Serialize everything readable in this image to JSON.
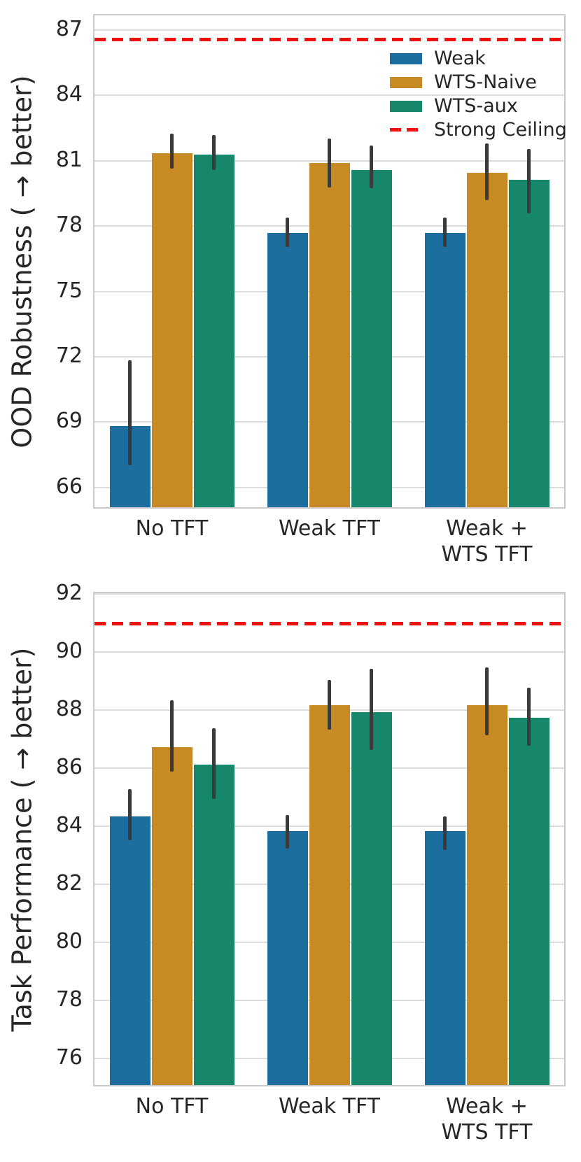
{
  "figure": {
    "background": "#ffffff",
    "text_color": "#262626",
    "grid_color": "#dcdcdc",
    "spine_color": "#c9c9c9",
    "errorbar_color": "#3a3a3a"
  },
  "legend": {
    "entries": [
      {
        "label": "Weak",
        "swatch": "patch",
        "color": "#1b6e9e"
      },
      {
        "label": "WTS-Naive",
        "swatch": "patch",
        "color": "#c88a24"
      },
      {
        "label": "WTS-aux",
        "swatch": "patch",
        "color": "#17876b"
      },
      {
        "label": "Strong Ceiling",
        "swatch": "dashed-line",
        "color": "#ee1111"
      }
    ]
  },
  "chart_data": [
    {
      "type": "bar",
      "title": "",
      "xlabel": "",
      "ylabel": "OOD Robustness ( → better)",
      "categories": [
        "No TFT",
        "Weak TFT",
        "Weak +\nWTS TFT"
      ],
      "series": [
        {
          "name": "Weak",
          "color": "#1b6e9e",
          "values": [
            68.8,
            77.65,
            77.65
          ],
          "err_low": [
            67.0,
            77.0,
            77.0
          ],
          "err_high": [
            71.8,
            78.35,
            78.35
          ]
        },
        {
          "name": "WTS-Naive",
          "color": "#c88a24",
          "values": [
            81.3,
            80.85,
            80.4
          ],
          "err_low": [
            80.6,
            79.75,
            79.15
          ],
          "err_high": [
            82.2,
            82.0,
            81.75
          ]
        },
        {
          "name": "WTS-aux",
          "color": "#17876b",
          "values": [
            81.25,
            80.55,
            80.1
          ],
          "err_low": [
            80.55,
            79.7,
            78.55
          ],
          "err_high": [
            82.15,
            81.65,
            81.5
          ]
        }
      ],
      "ceiling": {
        "label": "Strong Ceiling",
        "value": 86.6,
        "color": "#ee1111"
      },
      "ylim": [
        65,
        87.7
      ],
      "yticks": [
        66,
        69,
        72,
        75,
        78,
        81,
        84,
        87
      ],
      "grid": true,
      "legend_position": "upper-right-inside",
      "show_legend": true
    },
    {
      "type": "bar",
      "title": "",
      "xlabel": "",
      "ylabel": "Task Performance ( → better)",
      "categories": [
        "No TFT",
        "Weak TFT",
        "Weak +\nWTS TFT"
      ],
      "series": [
        {
          "name": "Weak",
          "color": "#1b6e9e",
          "values": [
            84.3,
            83.8,
            83.8
          ],
          "err_low": [
            83.5,
            83.2,
            83.15
          ],
          "err_high": [
            85.25,
            84.35,
            84.3
          ]
        },
        {
          "name": "WTS-Naive",
          "color": "#c88a24",
          "values": [
            86.7,
            88.15,
            88.15
          ],
          "err_low": [
            85.85,
            87.3,
            87.1
          ],
          "err_high": [
            88.3,
            89.0,
            89.45
          ]
        },
        {
          "name": "WTS-aux",
          "color": "#17876b",
          "values": [
            86.1,
            87.9,
            87.7
          ],
          "err_low": [
            84.9,
            86.6,
            86.75
          ],
          "err_high": [
            87.35,
            89.4,
            88.75
          ]
        }
      ],
      "ceiling": {
        "label": "Strong Ceiling",
        "value": 91.0,
        "color": "#ee1111"
      },
      "ylim": [
        75,
        92.05
      ],
      "yticks": [
        76,
        78,
        80,
        82,
        84,
        86,
        88,
        90,
        92
      ],
      "grid": true,
      "legend_position": "none",
      "show_legend": false
    }
  ]
}
